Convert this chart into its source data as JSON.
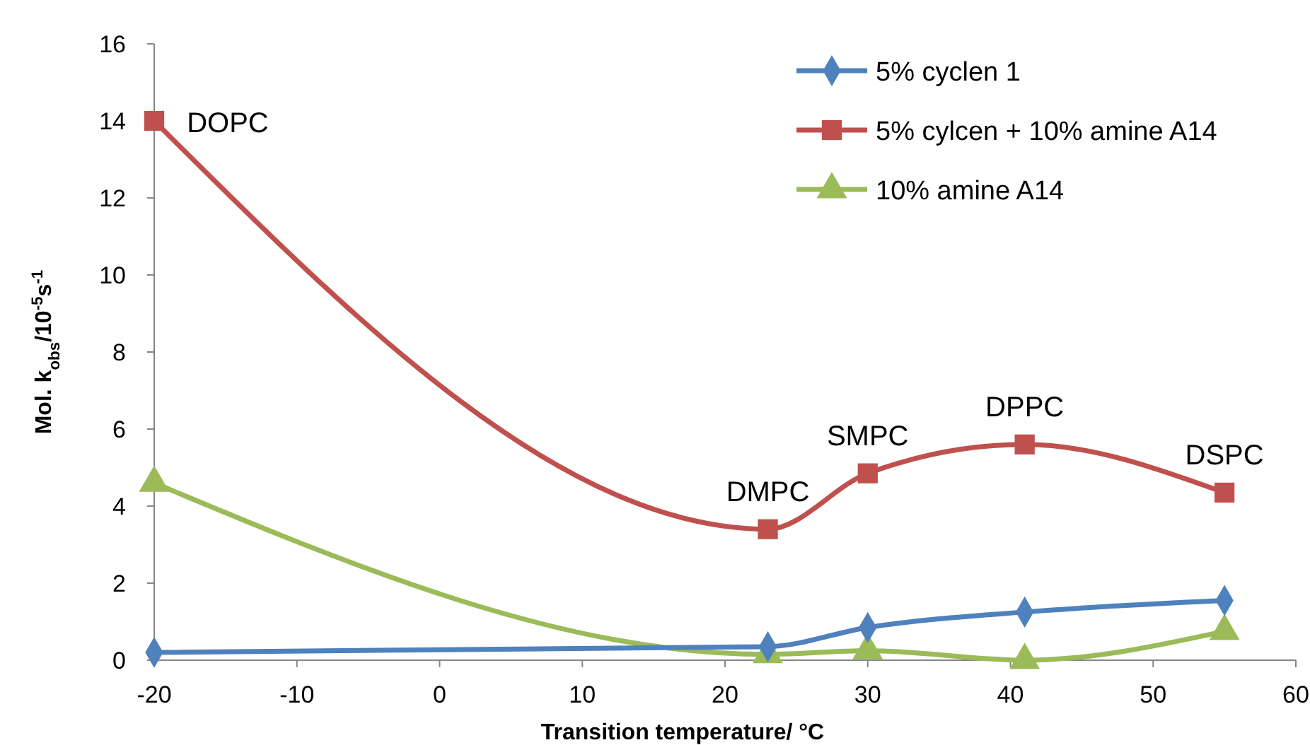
{
  "chart_data": {
    "type": "line",
    "xlabel": "Transition temperature/ °C",
    "ylabel": "Mol. k$_{obs}$/10$^{-5}$s$^{-1}$",
    "x": [
      -20,
      23,
      30,
      41,
      55
    ],
    "series": [
      {
        "name": "5% cyclen 1",
        "color": "#4f81bd",
        "marker": "diamond",
        "values": [
          0.2,
          0.35,
          0.85,
          1.25,
          1.55
        ]
      },
      {
        "name": "5% cylcen + 10% amine A14",
        "color": "#c0504d",
        "marker": "square",
        "values": [
          14,
          3.4,
          4.85,
          5.6,
          4.35
        ]
      },
      {
        "name": "10% amine A14",
        "color": "#9bbb59",
        "marker": "triangle",
        "values": [
          4.6,
          0.15,
          0.25,
          0,
          0.75
        ]
      }
    ],
    "annotations": [
      {
        "text": "DOPC",
        "x": -20,
        "y": 14
      },
      {
        "text": "DMPC",
        "x": 23,
        "y": 3.4
      },
      {
        "text": "SMPC",
        "x": 30,
        "y": 4.85
      },
      {
        "text": "DPPC",
        "x": 41,
        "y": 5.6
      },
      {
        "text": "DSPC",
        "x": 55,
        "y": 4.35
      }
    ],
    "xlim": [
      -20,
      60
    ],
    "xticks": [
      -20,
      -10,
      0,
      10,
      20,
      30,
      40,
      50,
      60
    ],
    "ylim": [
      0,
      16
    ],
    "yticks": [
      0,
      2,
      4,
      6,
      8,
      10,
      12,
      14,
      16
    ],
    "grid": false,
    "legend": "top right",
    "line_style": "solid"
  }
}
